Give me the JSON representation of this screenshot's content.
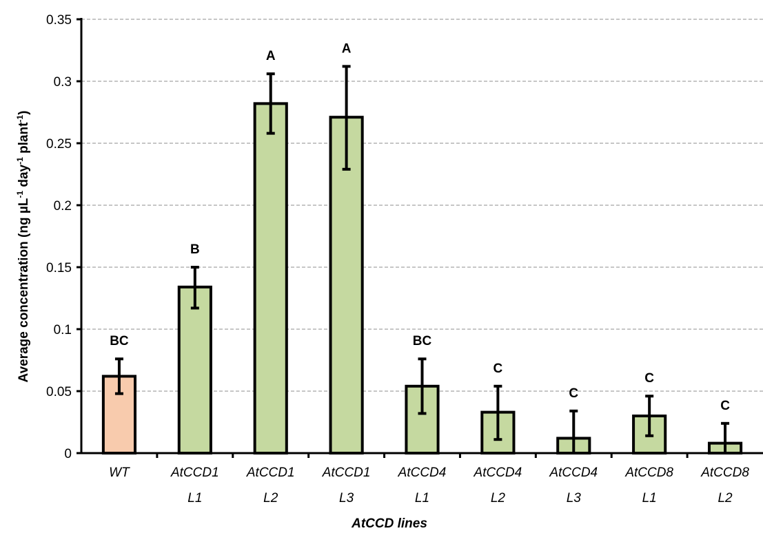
{
  "chart_data": {
    "type": "bar",
    "xlabel": "AtCCD lines",
    "ylabel": {
      "prefix": "Average concentration (ng µL",
      "sup1": "-1",
      "mid1": " day",
      "sup2": "-1",
      "mid2": " plant",
      "sup3": "-1",
      "suffix": ")"
    },
    "ylim": [
      0,
      0.35
    ],
    "yticks": [
      "0",
      "0.05",
      "0.1",
      "0.15",
      "0.2",
      "0.25",
      "0.3",
      "0.35"
    ],
    "grid": true,
    "categories": [
      {
        "line1": "WT",
        "line2": ""
      },
      {
        "line1": "AtCCD1",
        "line2": "L1"
      },
      {
        "line1": "AtCCD1",
        "line2": "L2"
      },
      {
        "line1": "AtCCD1",
        "line2": "L3"
      },
      {
        "line1": "AtCCD4",
        "line2": "L1"
      },
      {
        "line1": "AtCCD4",
        "line2": "L2"
      },
      {
        "line1": "AtCCD4",
        "line2": "L3"
      },
      {
        "line1": "AtCCD8",
        "line2": "L1"
      },
      {
        "line1": "AtCCD8",
        "line2": "L2"
      }
    ],
    "values": [
      0.062,
      0.134,
      0.282,
      0.271,
      0.054,
      0.033,
      0.012,
      0.03,
      0.008
    ],
    "error_high": [
      0.076,
      0.15,
      0.306,
      0.312,
      0.076,
      0.054,
      0.034,
      0.046,
      0.024
    ],
    "error_low": [
      0.048,
      0.117,
      0.258,
      0.229,
      0.032,
      0.011,
      0.0,
      0.014,
      0.0
    ],
    "significance": [
      "BC",
      "B",
      "A",
      "A",
      "BC",
      "C",
      "C",
      "C",
      "C"
    ],
    "colors": [
      "#f8cbad",
      "#c5d9a0",
      "#c5d9a0",
      "#c5d9a0",
      "#c5d9a0",
      "#c5d9a0",
      "#c5d9a0",
      "#c5d9a0",
      "#c5d9a0"
    ]
  }
}
